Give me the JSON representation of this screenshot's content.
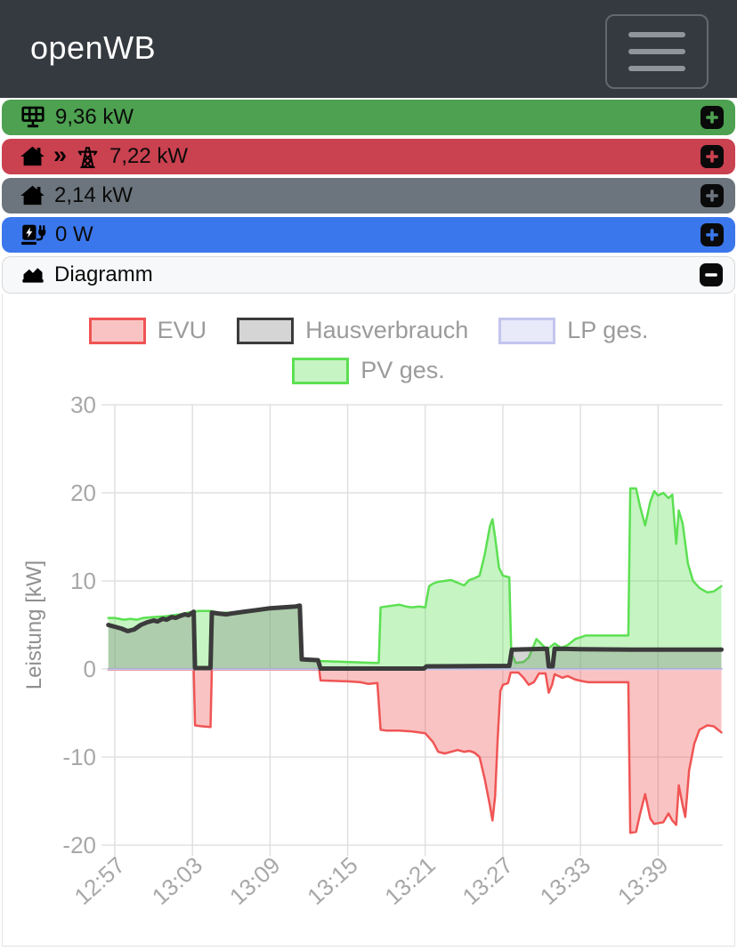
{
  "header": {
    "title": "openWB",
    "menu_icon": "hamburger-icon"
  },
  "status_bars": [
    {
      "name": "pv",
      "icon": "solar-panel-icon",
      "value": "9,36 kW",
      "color": "#4da150",
      "action_symbol": "plus"
    },
    {
      "name": "grid",
      "icon": "house-icon",
      "separator_symbol": "»",
      "icon2": "power-tower-icon",
      "value": "7,22 kW",
      "color": "#ca4150",
      "action_symbol": "plus"
    },
    {
      "name": "house",
      "icon": "house-icon",
      "value": "2,14 kW",
      "color": "#6c757d",
      "action_symbol": "plus"
    },
    {
      "name": "chargepoint",
      "icon": "charging-station-icon",
      "value": "0 W",
      "color": "#3b77ec",
      "action_symbol": "plus"
    }
  ],
  "diagram_panel": {
    "title": "Diagramm",
    "icon": "chart-area-icon",
    "collapse_symbol": "minus"
  },
  "chart_data": {
    "type": "area",
    "ylabel": "Leistung [kW]",
    "ylim": [
      -20,
      30
    ],
    "yticks": [
      30,
      20,
      10,
      0,
      -10,
      -20
    ],
    "xtick_labels": [
      "12:57",
      "13:03",
      "13:09",
      "13:15",
      "13:21",
      "13:27",
      "13:33",
      "13:39"
    ],
    "xtick_minutes": [
      0,
      6,
      12,
      18,
      24,
      30,
      36,
      42
    ],
    "x_range_minutes": [
      -0.5,
      47
    ],
    "grid": true,
    "legend_position": "top",
    "series": [
      {
        "name": "EVU",
        "line_color": "#f05454",
        "fill_color": "rgba(240,84,84,0.35)",
        "line_width": 2.5,
        "points": [
          [
            -0.5,
            -0.05
          ],
          [
            6.1,
            -0.05
          ],
          [
            6.2,
            -6.4
          ],
          [
            6.7,
            -6.5
          ],
          [
            7.4,
            -6.6
          ],
          [
            7.5,
            -0.05
          ],
          [
            15.8,
            -0.05
          ],
          [
            15.9,
            -1.3
          ],
          [
            17,
            -1.35
          ],
          [
            18,
            -1.4
          ],
          [
            19,
            -1.5
          ],
          [
            19.6,
            -1.7
          ],
          [
            20.3,
            -1.6
          ],
          [
            20.55,
            -6.9
          ],
          [
            21,
            -7.0
          ],
          [
            22,
            -7.0
          ],
          [
            23,
            -7.1
          ],
          [
            24,
            -7.3
          ],
          [
            24.3,
            -7.8
          ],
          [
            24.6,
            -8.3
          ],
          [
            25,
            -9.4
          ],
          [
            25.5,
            -9.6
          ],
          [
            26,
            -9.4
          ],
          [
            26.5,
            -9.2
          ],
          [
            27,
            -9.4
          ],
          [
            27.4,
            -9.3
          ],
          [
            27.8,
            -9.5
          ],
          [
            28.2,
            -10.0
          ],
          [
            28.6,
            -12.5
          ],
          [
            29,
            -15.5
          ],
          [
            29.2,
            -17.2
          ],
          [
            29.4,
            -14.5
          ],
          [
            29.6,
            -8.0
          ],
          [
            29.8,
            -2.5
          ],
          [
            30,
            -1.8
          ],
          [
            30.4,
            -1.6
          ],
          [
            30.6,
            -0.4
          ],
          [
            31.2,
            -0.4
          ],
          [
            31.6,
            -1.0
          ],
          [
            32,
            -1.8
          ],
          [
            32.4,
            -1.5
          ],
          [
            32.8,
            -0.5
          ],
          [
            33.3,
            -0.5
          ],
          [
            33.55,
            -2.7
          ],
          [
            33.8,
            -1.8
          ],
          [
            34.0,
            -0.6
          ],
          [
            34.6,
            -1.0
          ],
          [
            35,
            -0.8
          ],
          [
            35.6,
            -1.2
          ],
          [
            36.2,
            -1.4
          ],
          [
            36.6,
            -1.5
          ],
          [
            39.7,
            -1.5
          ],
          [
            39.85,
            -18.6
          ],
          [
            40.3,
            -18.5
          ],
          [
            40.6,
            -16.5
          ],
          [
            41,
            -14.2
          ],
          [
            41.4,
            -17.0
          ],
          [
            41.7,
            -17.6
          ],
          [
            42,
            -17.5
          ],
          [
            42.4,
            -17.4
          ],
          [
            42.8,
            -16.4
          ],
          [
            43.1,
            -17.2
          ],
          [
            43.4,
            -17.7
          ],
          [
            43.6,
            -13.2
          ],
          [
            43.9,
            -15.5
          ],
          [
            44.1,
            -16.8
          ],
          [
            44.4,
            -11.5
          ],
          [
            44.8,
            -8.5
          ],
          [
            45.2,
            -6.9
          ],
          [
            45.8,
            -6.4
          ],
          [
            46.3,
            -6.5
          ],
          [
            46.9,
            -7.2
          ]
        ]
      },
      {
        "name": "Hausverbrauch",
        "line_color": "#3b3b3b",
        "fill_color": "rgba(125,125,125,0.32)",
        "line_width": 5,
        "points": [
          [
            -0.5,
            5.0
          ],
          [
            0,
            4.8
          ],
          [
            0.5,
            4.6
          ],
          [
            1,
            4.3
          ],
          [
            1.5,
            4.5
          ],
          [
            2,
            5.0
          ],
          [
            2.5,
            5.3
          ],
          [
            3,
            5.5
          ],
          [
            3.3,
            5.4
          ],
          [
            3.7,
            5.7
          ],
          [
            4,
            5.6
          ],
          [
            4.4,
            5.9
          ],
          [
            4.7,
            5.8
          ],
          [
            5,
            6.0
          ],
          [
            5.4,
            6.2
          ],
          [
            5.7,
            6.1
          ],
          [
            6,
            6.4
          ],
          [
            6.1,
            6.5
          ],
          [
            6.2,
            0.1
          ],
          [
            7.4,
            0.1
          ],
          [
            7.5,
            6.4
          ],
          [
            8,
            6.3
          ],
          [
            8.6,
            6.2
          ],
          [
            9,
            6.3
          ],
          [
            10,
            6.5
          ],
          [
            11,
            6.7
          ],
          [
            12,
            6.9
          ],
          [
            13,
            7.0
          ],
          [
            14,
            7.1
          ],
          [
            14.3,
            7.2
          ],
          [
            14.45,
            1.1
          ],
          [
            15.7,
            1.0
          ],
          [
            15.9,
            0.05
          ],
          [
            23.9,
            0.05
          ],
          [
            24.1,
            0.3
          ],
          [
            30.5,
            0.35
          ],
          [
            30.7,
            2.2
          ],
          [
            33.4,
            2.3
          ],
          [
            33.55,
            0.3
          ],
          [
            33.85,
            0.3
          ],
          [
            34.0,
            2.3
          ],
          [
            36,
            2.25
          ],
          [
            40,
            2.2
          ],
          [
            44,
            2.2
          ],
          [
            46.9,
            2.2
          ]
        ]
      },
      {
        "name": "LP ges.",
        "line_color": "#c3c5ee",
        "fill_color": "rgba(151,154,229,0.22)",
        "line_width": 2.5,
        "points": [
          [
            -0.5,
            0
          ],
          [
            46.9,
            0
          ]
        ]
      },
      {
        "name": "PV ges.",
        "line_color": "#5ce052",
        "fill_color": "rgba(92,224,82,0.35)",
        "line_width": 2.5,
        "points": [
          [
            -0.5,
            5.8
          ],
          [
            0,
            5.8
          ],
          [
            0.7,
            5.6
          ],
          [
            1.2,
            5.7
          ],
          [
            1.7,
            5.6
          ],
          [
            2.2,
            5.8
          ],
          [
            3,
            5.9
          ],
          [
            4,
            6.0
          ],
          [
            5,
            6.2
          ],
          [
            6,
            6.5
          ],
          [
            6.5,
            6.6
          ],
          [
            7.4,
            6.6
          ],
          [
            8,
            6.4
          ],
          [
            9,
            6.4
          ],
          [
            10,
            6.5
          ],
          [
            11,
            6.8
          ],
          [
            12,
            6.9
          ],
          [
            13,
            7.0
          ],
          [
            14,
            7.1
          ],
          [
            14.3,
            7.2
          ],
          [
            14.45,
            1.0
          ],
          [
            15,
            0.95
          ],
          [
            16,
            0.9
          ],
          [
            17,
            0.85
          ],
          [
            18,
            0.8
          ],
          [
            19,
            0.75
          ],
          [
            20,
            0.7
          ],
          [
            20.4,
            0.7
          ],
          [
            20.55,
            7.0
          ],
          [
            21,
            7.1
          ],
          [
            21.5,
            7.2
          ],
          [
            22,
            7.3
          ],
          [
            22.5,
            7.1
          ],
          [
            23,
            7.0
          ],
          [
            23.5,
            7.1
          ],
          [
            24,
            7.0
          ],
          [
            24.3,
            9.4
          ],
          [
            24.6,
            9.7
          ],
          [
            25,
            9.9
          ],
          [
            25.5,
            10.0
          ],
          [
            26,
            10.1
          ],
          [
            26.5,
            9.8
          ],
          [
            27,
            9.5
          ],
          [
            27.4,
            10.1
          ],
          [
            27.8,
            10.3
          ],
          [
            28.2,
            10.6
          ],
          [
            28.6,
            13.0
          ],
          [
            29,
            16.2
          ],
          [
            29.2,
            17.0
          ],
          [
            29.4,
            15.0
          ],
          [
            29.7,
            11.5
          ],
          [
            30,
            10.6
          ],
          [
            30.5,
            10.4
          ],
          [
            30.65,
            1.8
          ],
          [
            31,
            0.7
          ],
          [
            31.6,
            0.8
          ],
          [
            32,
            1.3
          ],
          [
            32.6,
            3.4
          ],
          [
            33,
            2.8
          ],
          [
            33.4,
            2.2
          ],
          [
            34,
            2.9
          ],
          [
            34.5,
            2.4
          ],
          [
            35,
            2.7
          ],
          [
            35.6,
            3.4
          ],
          [
            36,
            3.6
          ],
          [
            36.4,
            3.8
          ],
          [
            38,
            3.8
          ],
          [
            39.7,
            3.8
          ],
          [
            39.85,
            20.5
          ],
          [
            40.3,
            20.5
          ],
          [
            40.6,
            18.5
          ],
          [
            41,
            16.3
          ],
          [
            41.4,
            19.0
          ],
          [
            41.7,
            20.2
          ],
          [
            42,
            19.7
          ],
          [
            42.4,
            20.0
          ],
          [
            42.8,
            19.4
          ],
          [
            43.1,
            19.8
          ],
          [
            43.4,
            14.2
          ],
          [
            43.6,
            18.0
          ],
          [
            43.9,
            16.5
          ],
          [
            44.3,
            12.0
          ],
          [
            44.7,
            10.0
          ],
          [
            45.2,
            9.2
          ],
          [
            45.8,
            8.7
          ],
          [
            46.3,
            8.8
          ],
          [
            46.9,
            9.4
          ]
        ]
      }
    ]
  },
  "style": {
    "grid_color": "#dcdcdc",
    "tick_text_color": "#a8a8a8",
    "axis_label_color": "#8f8f8f",
    "header_bg": "#343a40",
    "diagram_bar_bg": "#f7f8f9"
  }
}
